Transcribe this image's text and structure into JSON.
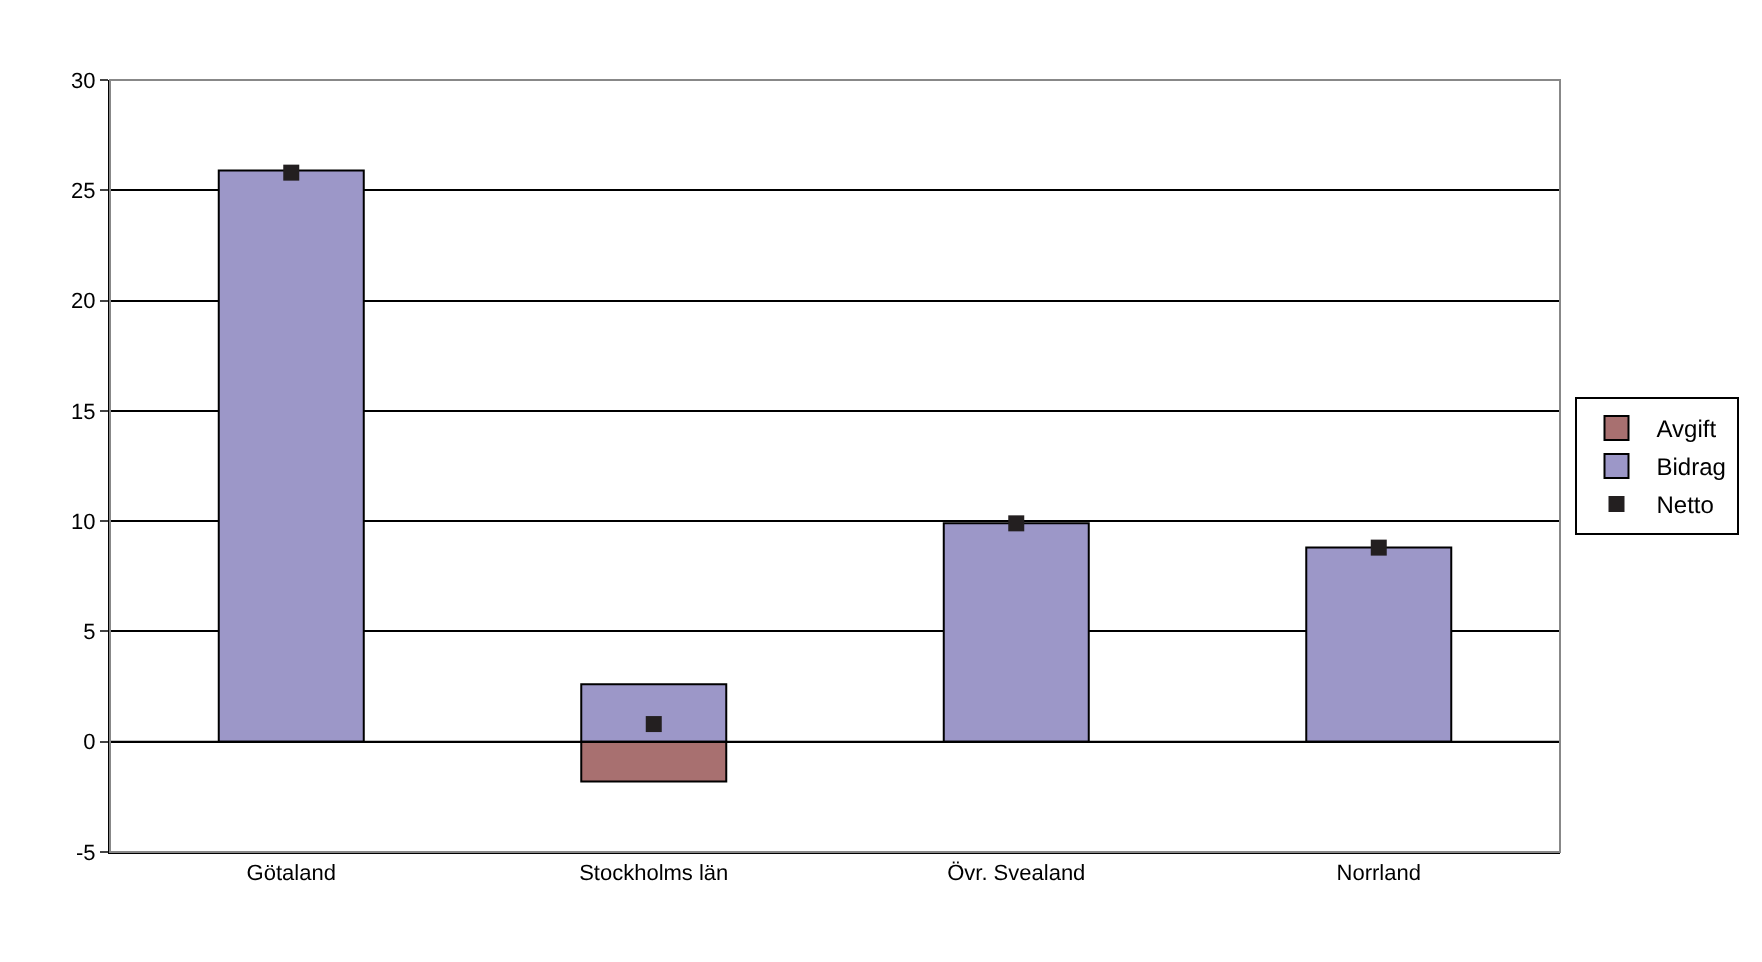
{
  "chart_data": {
    "type": "bar",
    "stacked": true,
    "categories": [
      "Götaland",
      "Stockholms län",
      "Övr. Svealand",
      "Norrland"
    ],
    "series": [
      {
        "name": "Avgift",
        "color": "#a87070",
        "values": [
          null,
          -1.8,
          0,
          0
        ]
      },
      {
        "name": "Bidrag",
        "color": "#9c97c8",
        "values": [
          25.9,
          2.6,
          9.9,
          8.8
        ]
      },
      {
        "name": "Netto",
        "type": "scatter",
        "color": "#231f20",
        "marker": "square",
        "values": [
          25.8,
          0.8,
          9.9,
          8.8
        ]
      }
    ],
    "ylim": [
      -5,
      30
    ],
    "yticks": [
      -5,
      0,
      5,
      10,
      15,
      20,
      25,
      30
    ],
    "grid": "y",
    "legend": "right"
  }
}
